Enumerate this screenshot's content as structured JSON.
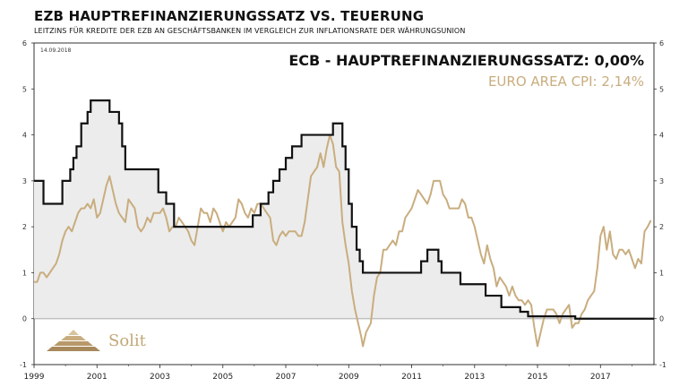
{
  "header": {
    "title": "EZB HAUPTREFINANZIERUNGSSATZ VS. TEUERUNG",
    "subtitle": "LEITZINS FÜR KREDITE DER EZB AN GESCHÄFTSBANKEN IM VERGLEICH ZUR INFLATIONSRATE DER WÄHRUNGSUNION",
    "date_stamp": "14.09.2018"
  },
  "logo": {
    "text": "Solit"
  },
  "colors": {
    "ecb": "#111111",
    "cpi": "#c9ad7f",
    "fill": "#ececec",
    "axis": "#333333"
  },
  "chart_data": {
    "type": "line",
    "xlim": [
      1999,
      2018.7
    ],
    "ylim": [
      -1,
      6
    ],
    "x_ticks": [
      "1999",
      "2001",
      "2003",
      "2005",
      "2007",
      "2009",
      "2011",
      "2013",
      "2015",
      "2017"
    ],
    "y_ticks": [
      "-1",
      "0",
      "1",
      "2",
      "3",
      "4",
      "5",
      "6"
    ],
    "series": [
      {
        "name": "ECB - HAUPTREFINANZIERUNGSSATZ: 0,00%",
        "legend_label": "ECB - HAUPTREFINANZIERUNGSSATZ: 0,00%",
        "step": true,
        "filled": true,
        "points": [
          [
            1999.0,
            3.0
          ],
          [
            1999.3,
            2.5
          ],
          [
            1999.9,
            3.0
          ],
          [
            2000.15,
            3.25
          ],
          [
            2000.25,
            3.5
          ],
          [
            2000.35,
            3.75
          ],
          [
            2000.5,
            4.25
          ],
          [
            2000.7,
            4.5
          ],
          [
            2000.8,
            4.75
          ],
          [
            2001.4,
            4.5
          ],
          [
            2001.7,
            4.25
          ],
          [
            2001.8,
            3.75
          ],
          [
            2001.9,
            3.25
          ],
          [
            2002.95,
            2.75
          ],
          [
            2003.2,
            2.5
          ],
          [
            2003.45,
            2.0
          ],
          [
            2005.95,
            2.25
          ],
          [
            2006.2,
            2.5
          ],
          [
            2006.45,
            2.75
          ],
          [
            2006.6,
            3.0
          ],
          [
            2006.8,
            3.25
          ],
          [
            2007.0,
            3.5
          ],
          [
            2007.2,
            3.75
          ],
          [
            2007.5,
            4.0
          ],
          [
            2008.5,
            4.25
          ],
          [
            2008.8,
            3.75
          ],
          [
            2008.9,
            3.25
          ],
          [
            2009.0,
            2.5
          ],
          [
            2009.1,
            2.0
          ],
          [
            2009.25,
            1.5
          ],
          [
            2009.35,
            1.25
          ],
          [
            2009.45,
            1.0
          ],
          [
            2011.3,
            1.25
          ],
          [
            2011.5,
            1.5
          ],
          [
            2011.85,
            1.25
          ],
          [
            2011.95,
            1.0
          ],
          [
            2012.55,
            0.75
          ],
          [
            2013.35,
            0.5
          ],
          [
            2013.85,
            0.25
          ],
          [
            2014.45,
            0.15
          ],
          [
            2014.7,
            0.05
          ],
          [
            2016.2,
            0.0
          ],
          [
            2018.7,
            0.0
          ]
        ]
      },
      {
        "name": "EURO AREA CPI: 2,14%",
        "legend_label": "EURO AREA CPI: 2,14%",
        "step": false,
        "points": [
          [
            1999.0,
            0.8
          ],
          [
            1999.1,
            0.8
          ],
          [
            1999.2,
            1.0
          ],
          [
            1999.3,
            1.0
          ],
          [
            1999.4,
            0.9
          ],
          [
            1999.5,
            1.0
          ],
          [
            1999.6,
            1.1
          ],
          [
            1999.7,
            1.2
          ],
          [
            1999.8,
            1.4
          ],
          [
            1999.9,
            1.7
          ],
          [
            2000.0,
            1.9
          ],
          [
            2000.1,
            2.0
          ],
          [
            2000.2,
            1.9
          ],
          [
            2000.3,
            2.1
          ],
          [
            2000.4,
            2.3
          ],
          [
            2000.5,
            2.4
          ],
          [
            2000.6,
            2.4
          ],
          [
            2000.7,
            2.5
          ],
          [
            2000.8,
            2.4
          ],
          [
            2000.9,
            2.6
          ],
          [
            2001.0,
            2.2
          ],
          [
            2001.1,
            2.3
          ],
          [
            2001.2,
            2.6
          ],
          [
            2001.3,
            2.9
          ],
          [
            2001.4,
            3.1
          ],
          [
            2001.5,
            2.8
          ],
          [
            2001.6,
            2.5
          ],
          [
            2001.7,
            2.3
          ],
          [
            2001.8,
            2.2
          ],
          [
            2001.9,
            2.1
          ],
          [
            2002.0,
            2.6
          ],
          [
            2002.1,
            2.5
          ],
          [
            2002.2,
            2.4
          ],
          [
            2002.3,
            2.0
          ],
          [
            2002.4,
            1.9
          ],
          [
            2002.5,
            2.0
          ],
          [
            2002.6,
            2.2
          ],
          [
            2002.7,
            2.1
          ],
          [
            2002.8,
            2.3
          ],
          [
            2002.9,
            2.3
          ],
          [
            2003.0,
            2.3
          ],
          [
            2003.1,
            2.4
          ],
          [
            2003.2,
            2.2
          ],
          [
            2003.3,
            1.9
          ],
          [
            2003.4,
            2.0
          ],
          [
            2003.5,
            2.0
          ],
          [
            2003.6,
            2.2
          ],
          [
            2003.7,
            2.1
          ],
          [
            2003.8,
            2.0
          ],
          [
            2003.9,
            1.9
          ],
          [
            2004.0,
            1.7
          ],
          [
            2004.1,
            1.6
          ],
          [
            2004.2,
            2.0
          ],
          [
            2004.3,
            2.4
          ],
          [
            2004.4,
            2.3
          ],
          [
            2004.5,
            2.3
          ],
          [
            2004.6,
            2.1
          ],
          [
            2004.7,
            2.4
          ],
          [
            2004.8,
            2.3
          ],
          [
            2004.9,
            2.1
          ],
          [
            2005.0,
            1.9
          ],
          [
            2005.1,
            2.1
          ],
          [
            2005.2,
            2.0
          ],
          [
            2005.3,
            2.1
          ],
          [
            2005.4,
            2.2
          ],
          [
            2005.5,
            2.6
          ],
          [
            2005.6,
            2.5
          ],
          [
            2005.7,
            2.3
          ],
          [
            2005.8,
            2.2
          ],
          [
            2005.9,
            2.4
          ],
          [
            2006.0,
            2.3
          ],
          [
            2006.1,
            2.5
          ],
          [
            2006.2,
            2.5
          ],
          [
            2006.3,
            2.4
          ],
          [
            2006.4,
            2.3
          ],
          [
            2006.5,
            2.2
          ],
          [
            2006.6,
            1.7
          ],
          [
            2006.7,
            1.6
          ],
          [
            2006.8,
            1.8
          ],
          [
            2006.9,
            1.9
          ],
          [
            2007.0,
            1.8
          ],
          [
            2007.1,
            1.9
          ],
          [
            2007.2,
            1.9
          ],
          [
            2007.3,
            1.9
          ],
          [
            2007.4,
            1.8
          ],
          [
            2007.5,
            1.8
          ],
          [
            2007.6,
            2.1
          ],
          [
            2007.7,
            2.6
          ],
          [
            2007.8,
            3.1
          ],
          [
            2007.9,
            3.2
          ],
          [
            2008.0,
            3.3
          ],
          [
            2008.1,
            3.6
          ],
          [
            2008.2,
            3.3
          ],
          [
            2008.3,
            3.7
          ],
          [
            2008.4,
            4.0
          ],
          [
            2008.5,
            3.8
          ],
          [
            2008.6,
            3.3
          ],
          [
            2008.7,
            3.2
          ],
          [
            2008.8,
            2.1
          ],
          [
            2008.9,
            1.6
          ],
          [
            2009.0,
            1.2
          ],
          [
            2009.1,
            0.6
          ],
          [
            2009.2,
            0.2
          ],
          [
            2009.3,
            -0.1
          ],
          [
            2009.4,
            -0.4
          ],
          [
            2009.45,
            -0.6
          ],
          [
            2009.55,
            -0.3
          ],
          [
            2009.7,
            -0.1
          ],
          [
            2009.8,
            0.5
          ],
          [
            2009.9,
            0.9
          ],
          [
            2010.0,
            1.0
          ],
          [
            2010.1,
            1.5
          ],
          [
            2010.2,
            1.5
          ],
          [
            2010.3,
            1.6
          ],
          [
            2010.4,
            1.7
          ],
          [
            2010.5,
            1.6
          ],
          [
            2010.6,
            1.9
          ],
          [
            2010.7,
            1.9
          ],
          [
            2010.8,
            2.2
          ],
          [
            2010.9,
            2.3
          ],
          [
            2011.0,
            2.4
          ],
          [
            2011.1,
            2.6
          ],
          [
            2011.2,
            2.8
          ],
          [
            2011.3,
            2.7
          ],
          [
            2011.4,
            2.6
          ],
          [
            2011.5,
            2.5
          ],
          [
            2011.6,
            2.7
          ],
          [
            2011.7,
            3.0
          ],
          [
            2011.8,
            3.0
          ],
          [
            2011.9,
            3.0
          ],
          [
            2012.0,
            2.7
          ],
          [
            2012.1,
            2.6
          ],
          [
            2012.2,
            2.4
          ],
          [
            2012.3,
            2.4
          ],
          [
            2012.4,
            2.4
          ],
          [
            2012.5,
            2.4
          ],
          [
            2012.6,
            2.6
          ],
          [
            2012.7,
            2.5
          ],
          [
            2012.8,
            2.2
          ],
          [
            2012.9,
            2.2
          ],
          [
            2013.0,
            2.0
          ],
          [
            2013.1,
            1.7
          ],
          [
            2013.2,
            1.4
          ],
          [
            2013.3,
            1.2
          ],
          [
            2013.4,
            1.6
          ],
          [
            2013.5,
            1.3
          ],
          [
            2013.6,
            1.1
          ],
          [
            2013.7,
            0.7
          ],
          [
            2013.8,
            0.9
          ],
          [
            2013.9,
            0.8
          ],
          [
            2014.0,
            0.7
          ],
          [
            2014.1,
            0.5
          ],
          [
            2014.2,
            0.7
          ],
          [
            2014.3,
            0.5
          ],
          [
            2014.4,
            0.4
          ],
          [
            2014.5,
            0.4
          ],
          [
            2014.6,
            0.3
          ],
          [
            2014.7,
            0.4
          ],
          [
            2014.8,
            0.3
          ],
          [
            2014.9,
            -0.2
          ],
          [
            2015.0,
            -0.6
          ],
          [
            2015.1,
            -0.3
          ],
          [
            2015.2,
            0.0
          ],
          [
            2015.3,
            0.2
          ],
          [
            2015.4,
            0.2
          ],
          [
            2015.5,
            0.2
          ],
          [
            2015.6,
            0.1
          ],
          [
            2015.7,
            -0.1
          ],
          [
            2015.8,
            0.1
          ],
          [
            2015.9,
            0.2
          ],
          [
            2016.0,
            0.3
          ],
          [
            2016.1,
            -0.2
          ],
          [
            2016.2,
            -0.1
          ],
          [
            2016.3,
            -0.1
          ],
          [
            2016.4,
            0.1
          ],
          [
            2016.5,
            0.2
          ],
          [
            2016.6,
            0.4
          ],
          [
            2016.7,
            0.5
          ],
          [
            2016.8,
            0.6
          ],
          [
            2016.9,
            1.1
          ],
          [
            2017.0,
            1.8
          ],
          [
            2017.1,
            2.0
          ],
          [
            2017.2,
            1.5
          ],
          [
            2017.3,
            1.9
          ],
          [
            2017.4,
            1.4
          ],
          [
            2017.5,
            1.3
          ],
          [
            2017.6,
            1.5
          ],
          [
            2017.7,
            1.5
          ],
          [
            2017.8,
            1.4
          ],
          [
            2017.9,
            1.5
          ],
          [
            2018.0,
            1.3
          ],
          [
            2018.1,
            1.1
          ],
          [
            2018.2,
            1.3
          ],
          [
            2018.3,
            1.2
          ],
          [
            2018.4,
            1.9
          ],
          [
            2018.5,
            2.0
          ],
          [
            2018.6,
            2.14
          ]
        ]
      }
    ]
  }
}
